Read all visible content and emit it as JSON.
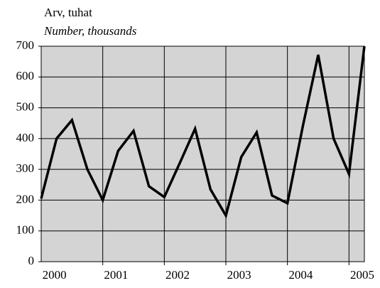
{
  "chart_data": {
    "type": "line",
    "title": "Arv, tuhat",
    "subtitle": "Number, thousands",
    "categories": [
      null,
      "2000",
      null,
      null,
      null,
      "2001",
      null,
      null,
      null,
      "2002",
      null,
      null,
      null,
      "2003",
      null,
      null,
      null,
      "2004",
      null,
      null,
      null,
      "2005"
    ],
    "series": [
      {
        "name": null,
        "color": "#000000",
        "values": [
          205,
          400,
          460,
          300,
          200,
          360,
          425,
          245,
          210,
          320,
          432,
          235,
          150,
          340,
          420,
          215,
          190,
          440,
          672,
          400,
          285,
          700
        ]
      }
    ],
    "ylim": [
      0,
      700
    ],
    "yticks": [
      0,
      100,
      200,
      300,
      400,
      500,
      600,
      700
    ],
    "grid": true
  }
}
